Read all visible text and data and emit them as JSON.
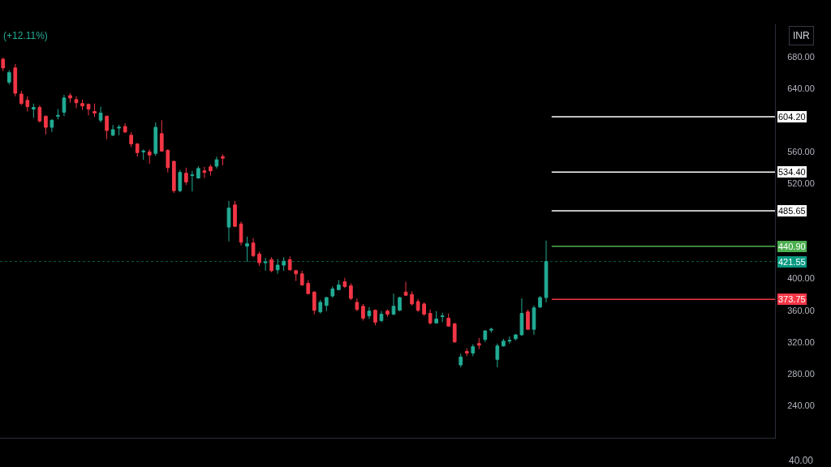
{
  "chart_data": {
    "type": "candlestick",
    "categories": [
      null,
      null,
      null,
      null,
      null,
      null,
      null,
      null,
      null,
      null,
      null,
      null,
      null,
      null,
      null,
      null,
      null,
      null,
      null,
      null,
      null,
      null,
      null,
      null,
      null,
      null,
      null,
      null,
      null,
      null,
      null,
      null,
      null,
      null,
      null,
      null,
      null,
      null,
      null,
      null,
      null,
      null,
      null,
      null,
      null,
      null,
      null,
      null,
      null,
      null,
      null,
      null,
      null,
      null,
      null,
      null,
      null,
      null,
      null,
      null,
      null,
      null,
      null,
      null,
      null,
      null,
      null,
      null,
      null,
      null,
      null,
      null,
      null,
      null,
      null,
      null,
      null,
      null,
      null,
      null,
      null,
      null,
      null,
      null,
      null,
      null,
      null,
      null,
      null,
      null,
      null,
      null,
      null,
      null,
      null,
      null,
      null,
      null,
      null,
      null,
      null,
      null,
      null,
      null,
      null,
      null,
      null,
      null,
      null,
      null,
      null,
      null,
      null,
      null,
      null,
      null,
      null,
      null,
      null,
      null,
      null,
      null,
      null,
      null,
      null,
      null,
      null
    ],
    "ohlc": [
      [
        677,
        679,
        662,
        666
      ],
      [
        648,
        663,
        645,
        660
      ],
      [
        666,
        671,
        630,
        634
      ],
      [
        633,
        637,
        619,
        621
      ],
      [
        625,
        630,
        611,
        617
      ],
      [
        614,
        621,
        603,
        616
      ],
      [
        616,
        619,
        597,
        599
      ],
      [
        605,
        606,
        582,
        591
      ],
      [
        591,
        601,
        585,
        600
      ],
      [
        605,
        614,
        601,
        606
      ],
      [
        610,
        632,
        605,
        628
      ],
      [
        631,
        634,
        622,
        628
      ],
      [
        626,
        630,
        615,
        622
      ],
      [
        621,
        626,
        613,
        618
      ],
      [
        620,
        621,
        606,
        614
      ],
      [
        611,
        621,
        604,
        609
      ],
      [
        600,
        617,
        597,
        609
      ],
      [
        605,
        606,
        576,
        587
      ],
      [
        581,
        594,
        580,
        588
      ],
      [
        590,
        594,
        581,
        591
      ],
      [
        592,
        596,
        584,
        585
      ],
      [
        581,
        585,
        566,
        570
      ],
      [
        570,
        571,
        554,
        559
      ],
      [
        560,
        563,
        550,
        561
      ],
      [
        560,
        563,
        545,
        556
      ],
      [
        558,
        597,
        555,
        591
      ],
      [
        583,
        600,
        560,
        561
      ],
      [
        562,
        563,
        534,
        540
      ],
      [
        548,
        549,
        508,
        511
      ],
      [
        511,
        537,
        509,
        534
      ],
      [
        533,
        540,
        518,
        522
      ],
      [
        530,
        536,
        510,
        531
      ],
      [
        527,
        542,
        526,
        539
      ],
      [
        536,
        541,
        527,
        534
      ],
      [
        541,
        544,
        530,
        536
      ],
      [
        542,
        554,
        539,
        550
      ],
      [
        554,
        557,
        543,
        552
      ],
      [
        465,
        498,
        447,
        489
      ],
      [
        493,
        498,
        465,
        466
      ],
      [
        469,
        472,
        442,
        446
      ],
      [
        441,
        453,
        421,
        444
      ],
      [
        445,
        451,
        427,
        429
      ],
      [
        431,
        434,
        416,
        420
      ],
      [
        420,
        426,
        410,
        421
      ],
      [
        424,
        427,
        408,
        410
      ],
      [
        411,
        425,
        406,
        417
      ],
      [
        417,
        427,
        410,
        422
      ],
      [
        424,
        428,
        410,
        411
      ],
      [
        410,
        411,
        397,
        406
      ],
      [
        406,
        410,
        391,
        392
      ],
      [
        394,
        398,
        380,
        381
      ],
      [
        383,
        384,
        355,
        360
      ],
      [
        358,
        373,
        356,
        370
      ],
      [
        366,
        377,
        359,
        376
      ],
      [
        378,
        390,
        376,
        387
      ],
      [
        386,
        398,
        386,
        392
      ],
      [
        396,
        401,
        388,
        390
      ],
      [
        391,
        394,
        373,
        375
      ],
      [
        370,
        375,
        359,
        361
      ],
      [
        365,
        368,
        347,
        350
      ],
      [
        353,
        364,
        349,
        359
      ],
      [
        360,
        361,
        341,
        345
      ],
      [
        347,
        359,
        345,
        355
      ],
      [
        359,
        361,
        352,
        355
      ],
      [
        355,
        381,
        354,
        365
      ],
      [
        360,
        377,
        359,
        376
      ],
      [
        383,
        396,
        378,
        379
      ],
      [
        380,
        384,
        366,
        368
      ],
      [
        371,
        374,
        358,
        360
      ],
      [
        368,
        370,
        353,
        355
      ],
      [
        356,
        361,
        342,
        344
      ],
      [
        344,
        359,
        343,
        349
      ],
      [
        352,
        357,
        345,
        353
      ],
      [
        350,
        356,
        339,
        340
      ],
      [
        343,
        344,
        319,
        320
      ],
      [
        291,
        305,
        288,
        301
      ],
      [
        308,
        312,
        302,
        306
      ],
      [
        306,
        317,
        302,
        314
      ],
      [
        318,
        325,
        311,
        316
      ],
      [
        323,
        335,
        320,
        334
      ],
      [
        335,
        338,
        332,
        336
      ],
      [
        298,
        318,
        288,
        315
      ],
      [
        315,
        324,
        314,
        321
      ],
      [
        321,
        327,
        318,
        322
      ],
      [
        324,
        330,
        322,
        329
      ],
      [
        329,
        375,
        328,
        356
      ],
      [
        358,
        361,
        335,
        336
      ],
      [
        336,
        366,
        329,
        363
      ],
      [
        364,
        378,
        363,
        376
      ],
      [
        376,
        448,
        370,
        421.55
      ],
      null,
      null,
      null,
      null,
      null,
      null,
      null,
      null,
      null,
      null,
      null,
      null,
      null,
      null,
      null,
      null,
      null,
      null,
      null,
      null,
      null,
      null,
      null,
      null,
      null,
      null,
      null,
      null,
      null,
      null,
      null,
      null,
      null,
      null,
      null,
      null,
      null
    ],
    "colors": [
      "#f23645",
      "#22ab94",
      "#f23645",
      "#f23645",
      "#f23645",
      "#22ab94",
      "#f23645",
      "#f23645",
      "#22ab94",
      "#22ab94",
      "#22ab94",
      "#f23645",
      "#f23645",
      "#f23645",
      "#f23645",
      "#f23645",
      "#22ab94",
      "#f23645",
      "#22ab94",
      "#22ab94",
      "#f23645",
      "#f23645",
      "#f23645",
      "#22ab94",
      "#f23645",
      "#22ab94",
      "#f23645",
      "#f23645",
      "#f23645",
      "#22ab94",
      "#f23645",
      "#22ab94",
      "#22ab94",
      "#f23645",
      "#f23645",
      "#22ab94",
      "#f23645",
      "#22ab94",
      "#f23645",
      "#f23645",
      "#22ab94",
      "#f23645",
      "#f23645",
      "#22ab94",
      "#f23645",
      "#22ab94",
      "#22ab94",
      "#f23645",
      "#f23645",
      "#f23645",
      "#f23645",
      "#f23645",
      "#22ab94",
      "#22ab94",
      "#22ab94",
      "#22ab94",
      "#f23645",
      "#f23645",
      "#f23645",
      "#f23645",
      "#22ab94",
      "#f23645",
      "#22ab94",
      "#f23645",
      "#22ab94",
      "#22ab94",
      "#f23645",
      "#f23645",
      "#f23645",
      "#f23645",
      "#f23645",
      "#22ab94",
      "#22ab94",
      "#f23645",
      "#f23645",
      "#22ab94",
      "#f23645",
      "#22ab94",
      "#f23645",
      "#22ab94",
      "#22ab94",
      "#22ab94",
      "#22ab94",
      "#22ab94",
      "#22ab94",
      "#22ab94",
      "#f23645",
      "#22ab94",
      "#22ab94",
      "#22ab94",
      null,
      null,
      null,
      null,
      null,
      null,
      null,
      null,
      null,
      null,
      null,
      null,
      null,
      null,
      null,
      null,
      null,
      null,
      null,
      null,
      null,
      null,
      null,
      null,
      null,
      null,
      null,
      null,
      null,
      null,
      null,
      null,
      null,
      null,
      null,
      null,
      null
    ],
    "ylim": [
      199,
      721
    ],
    "yticks": [
      {
        "value": 240,
        "label": "240.00"
      },
      {
        "value": 280,
        "label": "280.00"
      },
      {
        "value": 320,
        "label": "320.00"
      },
      {
        "value": 360,
        "label": "360.00"
      },
      {
        "value": 400,
        "label": "400.00"
      },
      {
        "value": 520,
        "label": "520.00"
      },
      {
        "value": 560,
        "label": "560.00"
      },
      {
        "value": 640,
        "label": "640.00"
      },
      {
        "value": 680,
        "label": "680.00"
      }
    ],
    "tick_labels": "y",
    "ref_lines": [
      {
        "axis": "y",
        "value": 604.2,
        "label": "604.20",
        "color": "#ffffff"
      },
      {
        "axis": "y",
        "value": 534.4,
        "label": "534.40",
        "color": "#ffffff"
      },
      {
        "axis": "y",
        "value": 485.65,
        "label": "485.65",
        "color": "#ffffff"
      },
      {
        "axis": "y",
        "value": 440.9,
        "label": "440.90",
        "color": "#4caf50"
      },
      {
        "axis": "y",
        "value": 421.55,
        "label": "421.55",
        "color": "#089981",
        "line_style": "dotted"
      },
      {
        "axis": "y",
        "value": 373.75,
        "label": "373.75",
        "color": "#f23645"
      }
    ],
    "annotations": [
      "(+12.11%)",
      "INR",
      "40.00"
    ]
  }
}
